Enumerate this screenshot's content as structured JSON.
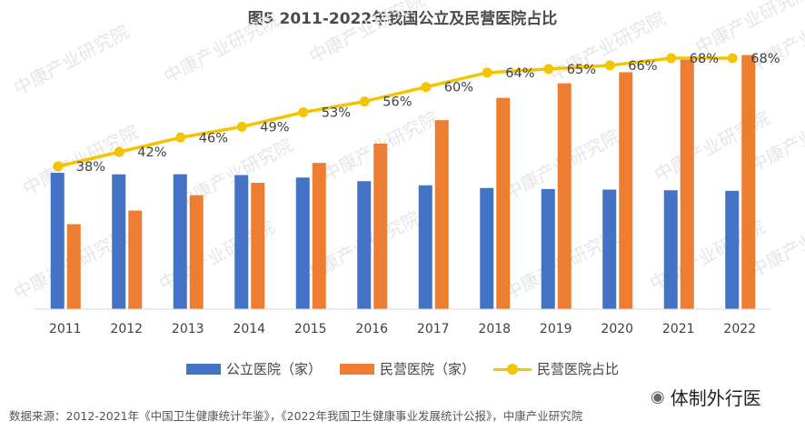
{
  "title": "图5 2011-2022年我国公立及民营医院占比",
  "legend": {
    "public": "公立医院（家）",
    "private": "民营医院（家）",
    "share": "民营医院占比"
  },
  "source": "数据来源：2012-2021年《中国卫生健康统计年鉴》，《2022年我国卫生健康事业发展统计公报》，中康产业研究院",
  "brand": {
    "icon": "wechat-icon",
    "name": "体制外行医"
  },
  "watermark": "中康产业研究院",
  "colors": {
    "public": "#4472C4",
    "private": "#ED7D31",
    "share": "#F2C500"
  },
  "chart_data": {
    "type": "bar",
    "categories": [
      "2011",
      "2012",
      "2013",
      "2014",
      "2015",
      "2016",
      "2017",
      "2018",
      "2019",
      "2020",
      "2021",
      "2022"
    ],
    "series": [
      {
        "name": "公立医院（家）",
        "type": "bar",
        "values": [
          13539,
          13384,
          13396,
          13314,
          13069,
          12708,
          12297,
          12032,
          11930,
          11870,
          11804,
          11746
        ]
      },
      {
        "name": "民营医院（家）",
        "type": "bar",
        "values": [
          8440,
          9786,
          11313,
          12546,
          14518,
          16432,
          18759,
          20977,
          22424,
          23524,
          24766,
          25230
        ]
      },
      {
        "name": "民营医院占比",
        "type": "line",
        "values": [
          38,
          42,
          46,
          49,
          53,
          56,
          60,
          64,
          65,
          66,
          68,
          68
        ],
        "unit": "%"
      }
    ],
    "data_labels": [
      "38%",
      "42%",
      "46%",
      "49%",
      "53%",
      "56%",
      "60%",
      "64%",
      "65%",
      "66%",
      "68%",
      "68%"
    ],
    "ylim": [
      0,
      26000
    ],
    "legend_position": "bottom",
    "grid": false
  }
}
